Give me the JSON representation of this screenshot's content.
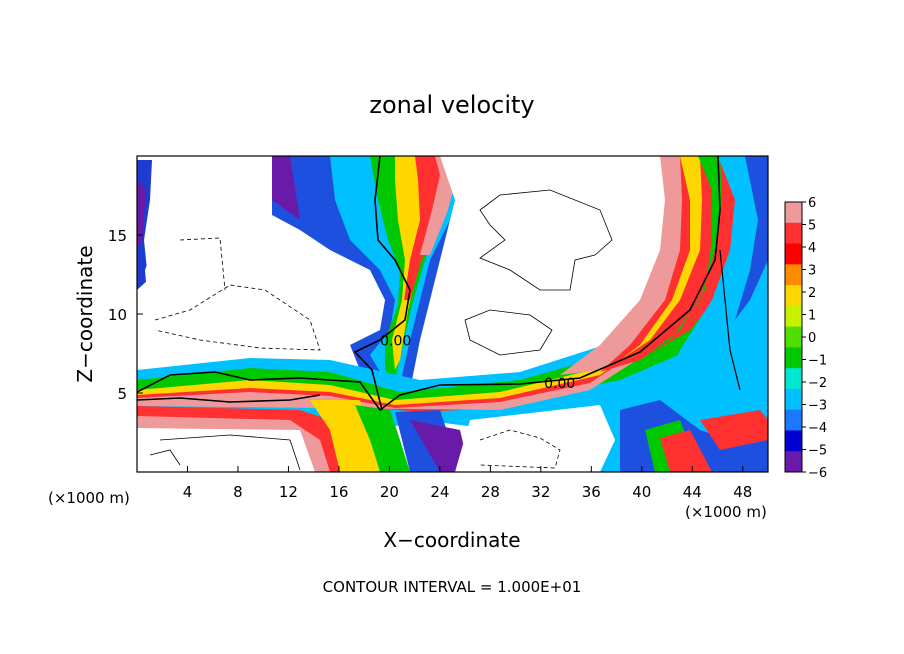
{
  "chart_data": {
    "type": "heatmap",
    "title": "zonal velocity",
    "xlabel": "X−coordinate",
    "ylabel": "Z−coordinate",
    "x_unit_left": "(×1000 m)",
    "x_unit_right": "(×1000 m)",
    "xlim": [
      0,
      50
    ],
    "ylim": [
      0,
      20
    ],
    "x_ticks": [
      4,
      8,
      12,
      16,
      20,
      24,
      28,
      32,
      36,
      40,
      44,
      48
    ],
    "y_ticks": [
      5,
      10,
      15
    ],
    "colorbar": {
      "values": [
        6,
        5,
        4,
        3,
        2,
        1,
        0,
        -1,
        -2,
        -3,
        -4,
        -5,
        -6
      ],
      "labels": [
        "6",
        "5",
        "4",
        "3",
        "2",
        "1",
        "0",
        "−1",
        "−2",
        "−3",
        "−4",
        "−5",
        "−6"
      ],
      "colors": [
        "#ef9a9a",
        "#ff3030",
        "#ff0000",
        "#ff8c00",
        "#ffd700",
        "#c8f000",
        "#50dd00",
        "#00c800",
        "#00e8d0",
        "#00c0ff",
        "#1e78ff",
        "#0000d2",
        "#6a1aa8"
      ]
    },
    "contour_labels": [
      {
        "text": "0.00",
        "x": 20.5,
        "z": 8.2
      },
      {
        "text": "0.00",
        "x": 33.5,
        "z": 5.5
      }
    ],
    "footer": "CONTOUR INTERVAL = 1.000E+01",
    "grid": false
  }
}
